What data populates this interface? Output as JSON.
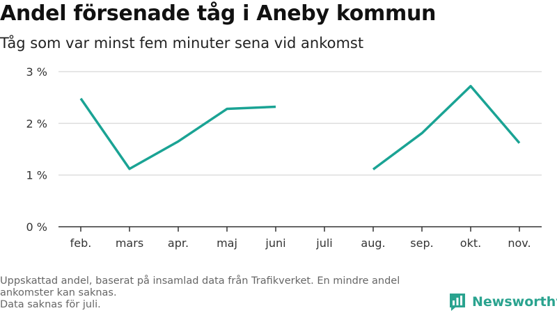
{
  "header": {
    "title": "Andel försenade tåg i Aneby kommun",
    "subtitle": "Tåg som var minst fem minuter sena vid ankomst"
  },
  "footer": {
    "note_line1": "Uppskattad andel, baserat på insamlad data från Trafikverket. En mindre andel ankomster kan saknas.",
    "note_line2": "Data saknas för juli."
  },
  "brand": {
    "name": "Newsworthy",
    "icon": "bar-chart-icon",
    "color": "#2aa38f"
  },
  "chart_data": {
    "type": "line",
    "title": "Andel försenade tåg i Aneby kommun",
    "subtitle": "Tåg som var minst fem minuter sena vid ankomst",
    "xlabel": "",
    "ylabel": "",
    "categories": [
      "feb.",
      "mars",
      "apr.",
      "maj",
      "juni",
      "juli",
      "aug.",
      "sep.",
      "okt.",
      "nov."
    ],
    "series": [
      {
        "values": [
          2.48,
          1.12,
          1.65,
          2.28,
          2.32,
          null,
          1.11,
          1.81,
          2.72,
          1.62
        ],
        "color": "#1aa394"
      }
    ],
    "ylim": [
      0,
      3
    ],
    "yticks": [
      0,
      1,
      2,
      3
    ],
    "ytick_labels": [
      "0 %",
      "1 %",
      "2 %",
      "3 %"
    ],
    "grid": true,
    "grid_color": "#dddddd",
    "axis_color": "#333333"
  }
}
